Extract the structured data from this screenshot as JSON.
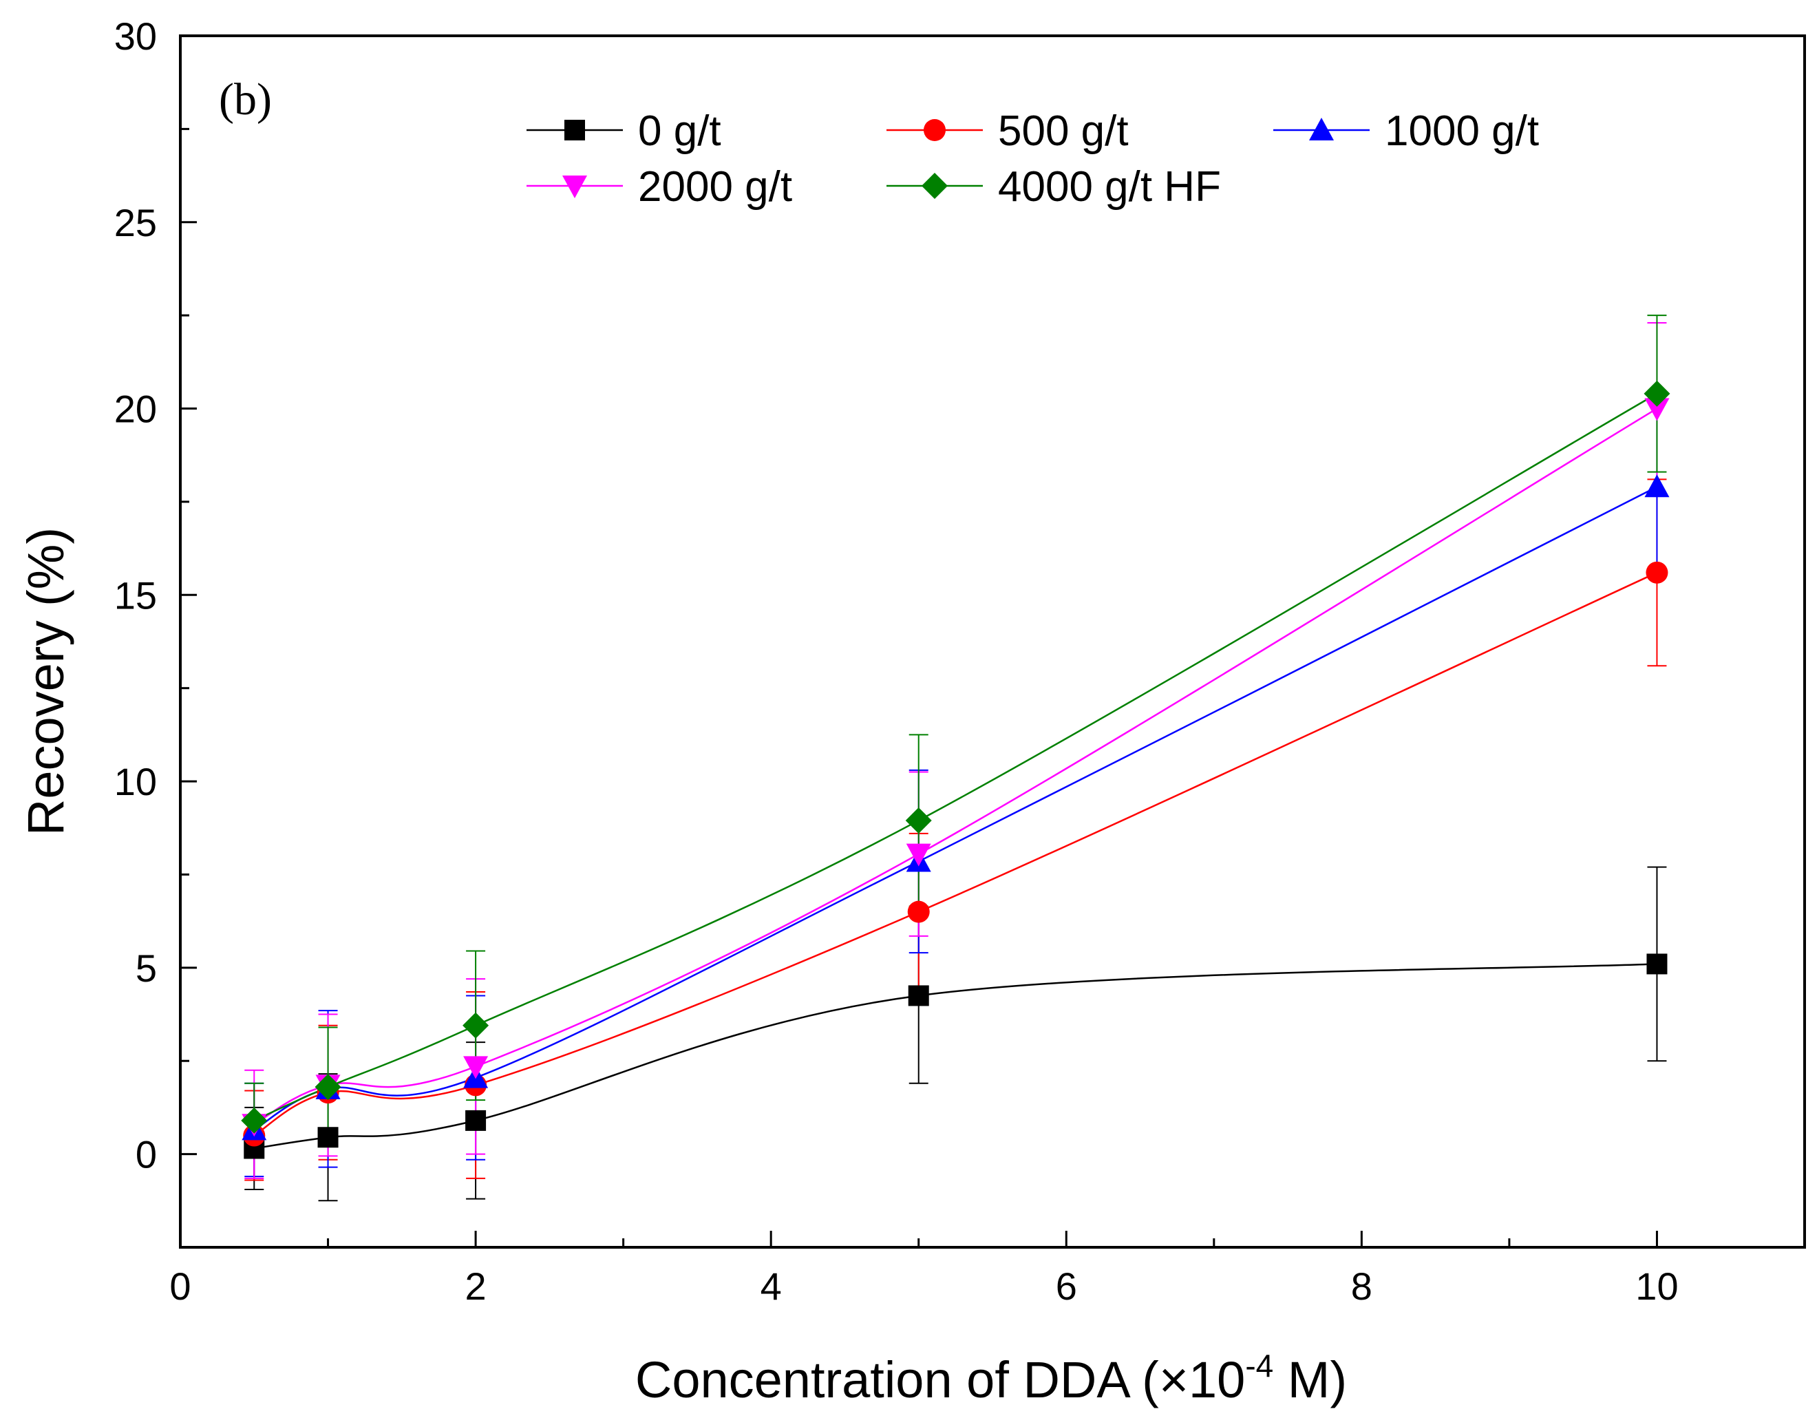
{
  "chart_data": {
    "type": "line",
    "panel_label": "(b)",
    "xlabel": {
      "main": "Concentration of DDA (",
      "times": "×",
      "base": "10",
      "exp": "-4",
      "unit": " M)"
    },
    "ylabel": "Recovery (%)",
    "xlim": [
      0,
      11
    ],
    "ylim": [
      -2.5,
      30
    ],
    "x_ticks": [
      0,
      2,
      4,
      6,
      8,
      10
    ],
    "x_tick_labels": [
      "0",
      "2",
      "4",
      "6",
      "8",
      "10"
    ],
    "x_minor_ticks": [
      1,
      3,
      5,
      7,
      9
    ],
    "y_ticks": [
      0,
      5,
      10,
      15,
      20,
      25,
      30
    ],
    "y_tick_labels": [
      "0",
      "5",
      "10",
      "15",
      "20",
      "25",
      "30"
    ],
    "y_minor_ticks": [
      2.5,
      7.5,
      12.5,
      17.5,
      22.5,
      27.5
    ],
    "grid": false,
    "legend_position": "top",
    "x": [
      0.5,
      1,
      2,
      5,
      10
    ],
    "series": [
      {
        "name": "0 g/t",
        "color": "#000000",
        "marker": "square",
        "values": [
          0.15,
          0.45,
          0.9,
          4.25,
          5.1
        ],
        "errors": [
          1.1,
          1.7,
          2.1,
          2.35,
          2.6
        ]
      },
      {
        "name": "500 g/t",
        "color": "#ff0000",
        "marker": "circle",
        "values": [
          0.5,
          1.65,
          1.85,
          6.5,
          15.6
        ],
        "errors": [
          1.2,
          1.8,
          2.5,
          2.1,
          2.5
        ]
      },
      {
        "name": "1000 g/t",
        "color": "#0000ff",
        "marker": "triangle-up",
        "values": [
          0.65,
          1.75,
          2.05,
          7.85,
          17.9
        ],
        "errors": [
          1.25,
          2.1,
          2.2,
          2.45,
          2.3
        ]
      },
      {
        "name": "2000 g/t",
        "color": "#ff00ff",
        "marker": "triangle-down",
        "values": [
          0.8,
          1.85,
          2.35,
          8.05,
          20.0
        ],
        "errors": [
          1.45,
          1.9,
          2.35,
          2.2,
          2.3
        ]
      },
      {
        "name": "4000 g/t HF",
        "color": "#008000",
        "marker": "diamond",
        "values": [
          0.9,
          1.8,
          3.45,
          8.95,
          20.4
        ],
        "errors": [
          1.0,
          1.6,
          2.0,
          2.3,
          2.1
        ]
      }
    ]
  }
}
